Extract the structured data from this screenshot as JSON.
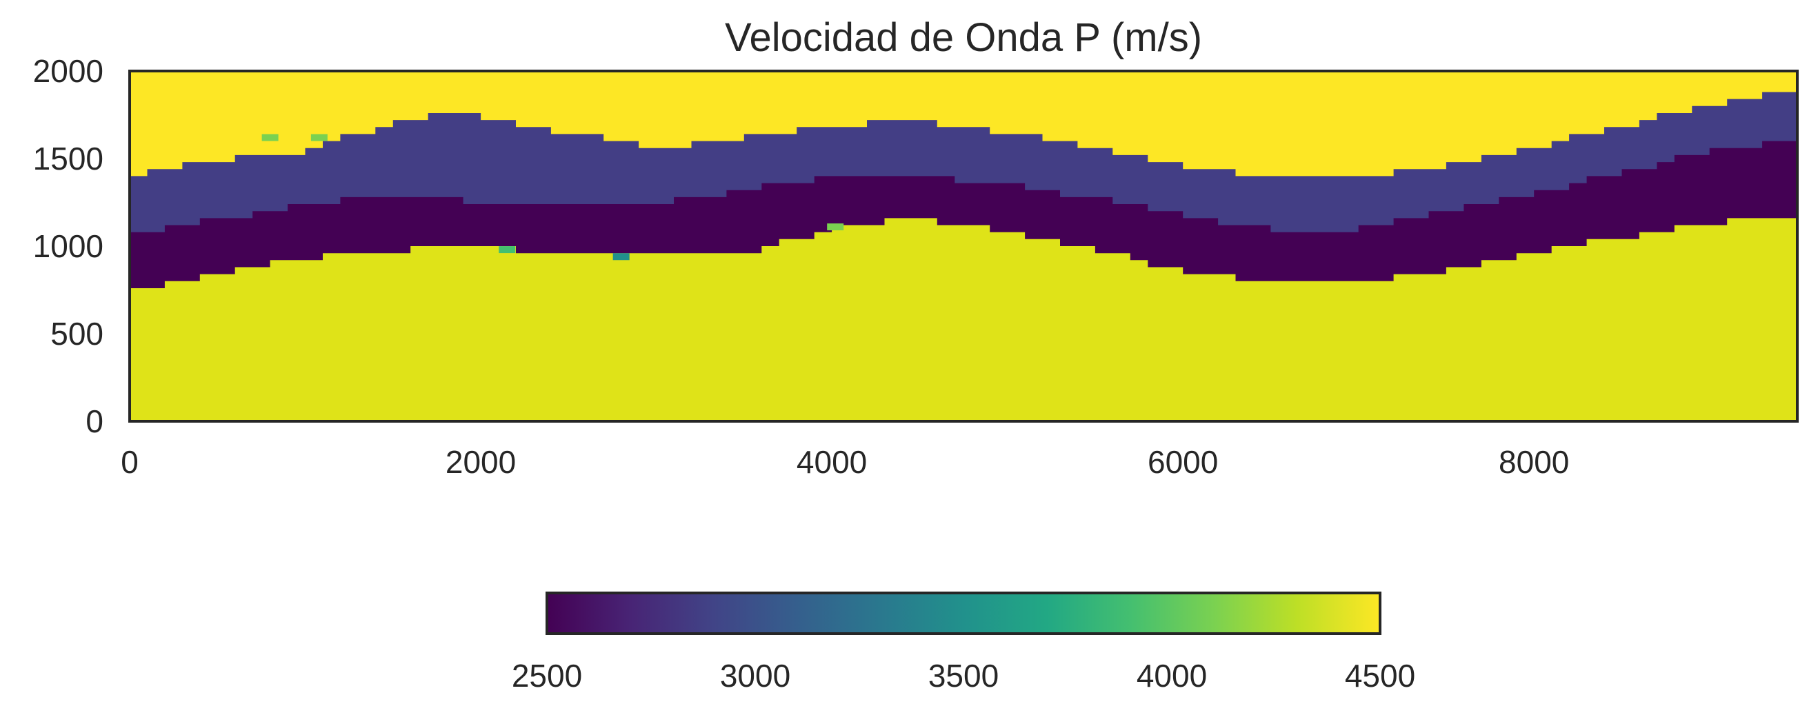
{
  "chart_data": {
    "type": "heatmap",
    "title": "Velocidad de Onda P (m/s)",
    "xlabel": "",
    "ylabel": "",
    "xlim": [
      0,
      9500
    ],
    "ylim": [
      0,
      2000
    ],
    "x_ticks": [
      "0",
      "2000",
      "4000",
      "6000",
      "8000"
    ],
    "y_ticks": [
      "0",
      "500",
      "1000",
      "1500",
      "2000"
    ],
    "grid": false,
    "colormap": "viridis",
    "colorbar": {
      "orientation": "horizontal",
      "placement": "bottom",
      "range": [
        2500,
        4500
      ],
      "ticks": [
        "2500",
        "3000",
        "3500",
        "4000",
        "4500"
      ]
    },
    "layers": [
      {
        "name": "bottom",
        "velocity": 4400,
        "color": "#dfe318"
      },
      {
        "name": "lower-middle",
        "velocity": 2550,
        "color": "#440154"
      },
      {
        "name": "upper-middle",
        "velocity": 2800,
        "color": "#433e85"
      },
      {
        "name": "top",
        "velocity": 4500,
        "color": "#fde725"
      }
    ],
    "interfaces_x": [
      0,
      500,
      1000,
      1500,
      1900,
      2500,
      3000,
      3500,
      4000,
      4500,
      5000,
      5500,
      6000,
      6500,
      7000,
      7500,
      8000,
      8500,
      9000,
      9500
    ],
    "interface_depths": {
      "bottom_top": [
        740,
        850,
        930,
        970,
        1000,
        960,
        940,
        960,
        1100,
        1160,
        1080,
        980,
        860,
        780,
        780,
        860,
        960,
        1050,
        1130,
        1170
      ],
      "lower_middle_top": [
        1050,
        1150,
        1230,
        1300,
        1260,
        1240,
        1240,
        1320,
        1400,
        1400,
        1350,
        1270,
        1170,
        1100,
        1090,
        1190,
        1300,
        1420,
        1540,
        1610
      ],
      "upper_middle_top": [
        1410,
        1490,
        1540,
        1710,
        1760,
        1650,
        1560,
        1620,
        1690,
        1720,
        1650,
        1550,
        1460,
        1400,
        1400,
        1460,
        1560,
        1680,
        1800,
        1890
      ]
    },
    "anomalies": [
      {
        "x": 800,
        "y": 1620,
        "velocity": 4100
      },
      {
        "x": 1080,
        "y": 1620,
        "velocity": 4000
      },
      {
        "x": 2800,
        "y": 940,
        "velocity": 3500
      },
      {
        "x": 2150,
        "y": 980,
        "velocity": 3900
      },
      {
        "x": 4020,
        "y": 1110,
        "velocity": 4000
      }
    ]
  }
}
